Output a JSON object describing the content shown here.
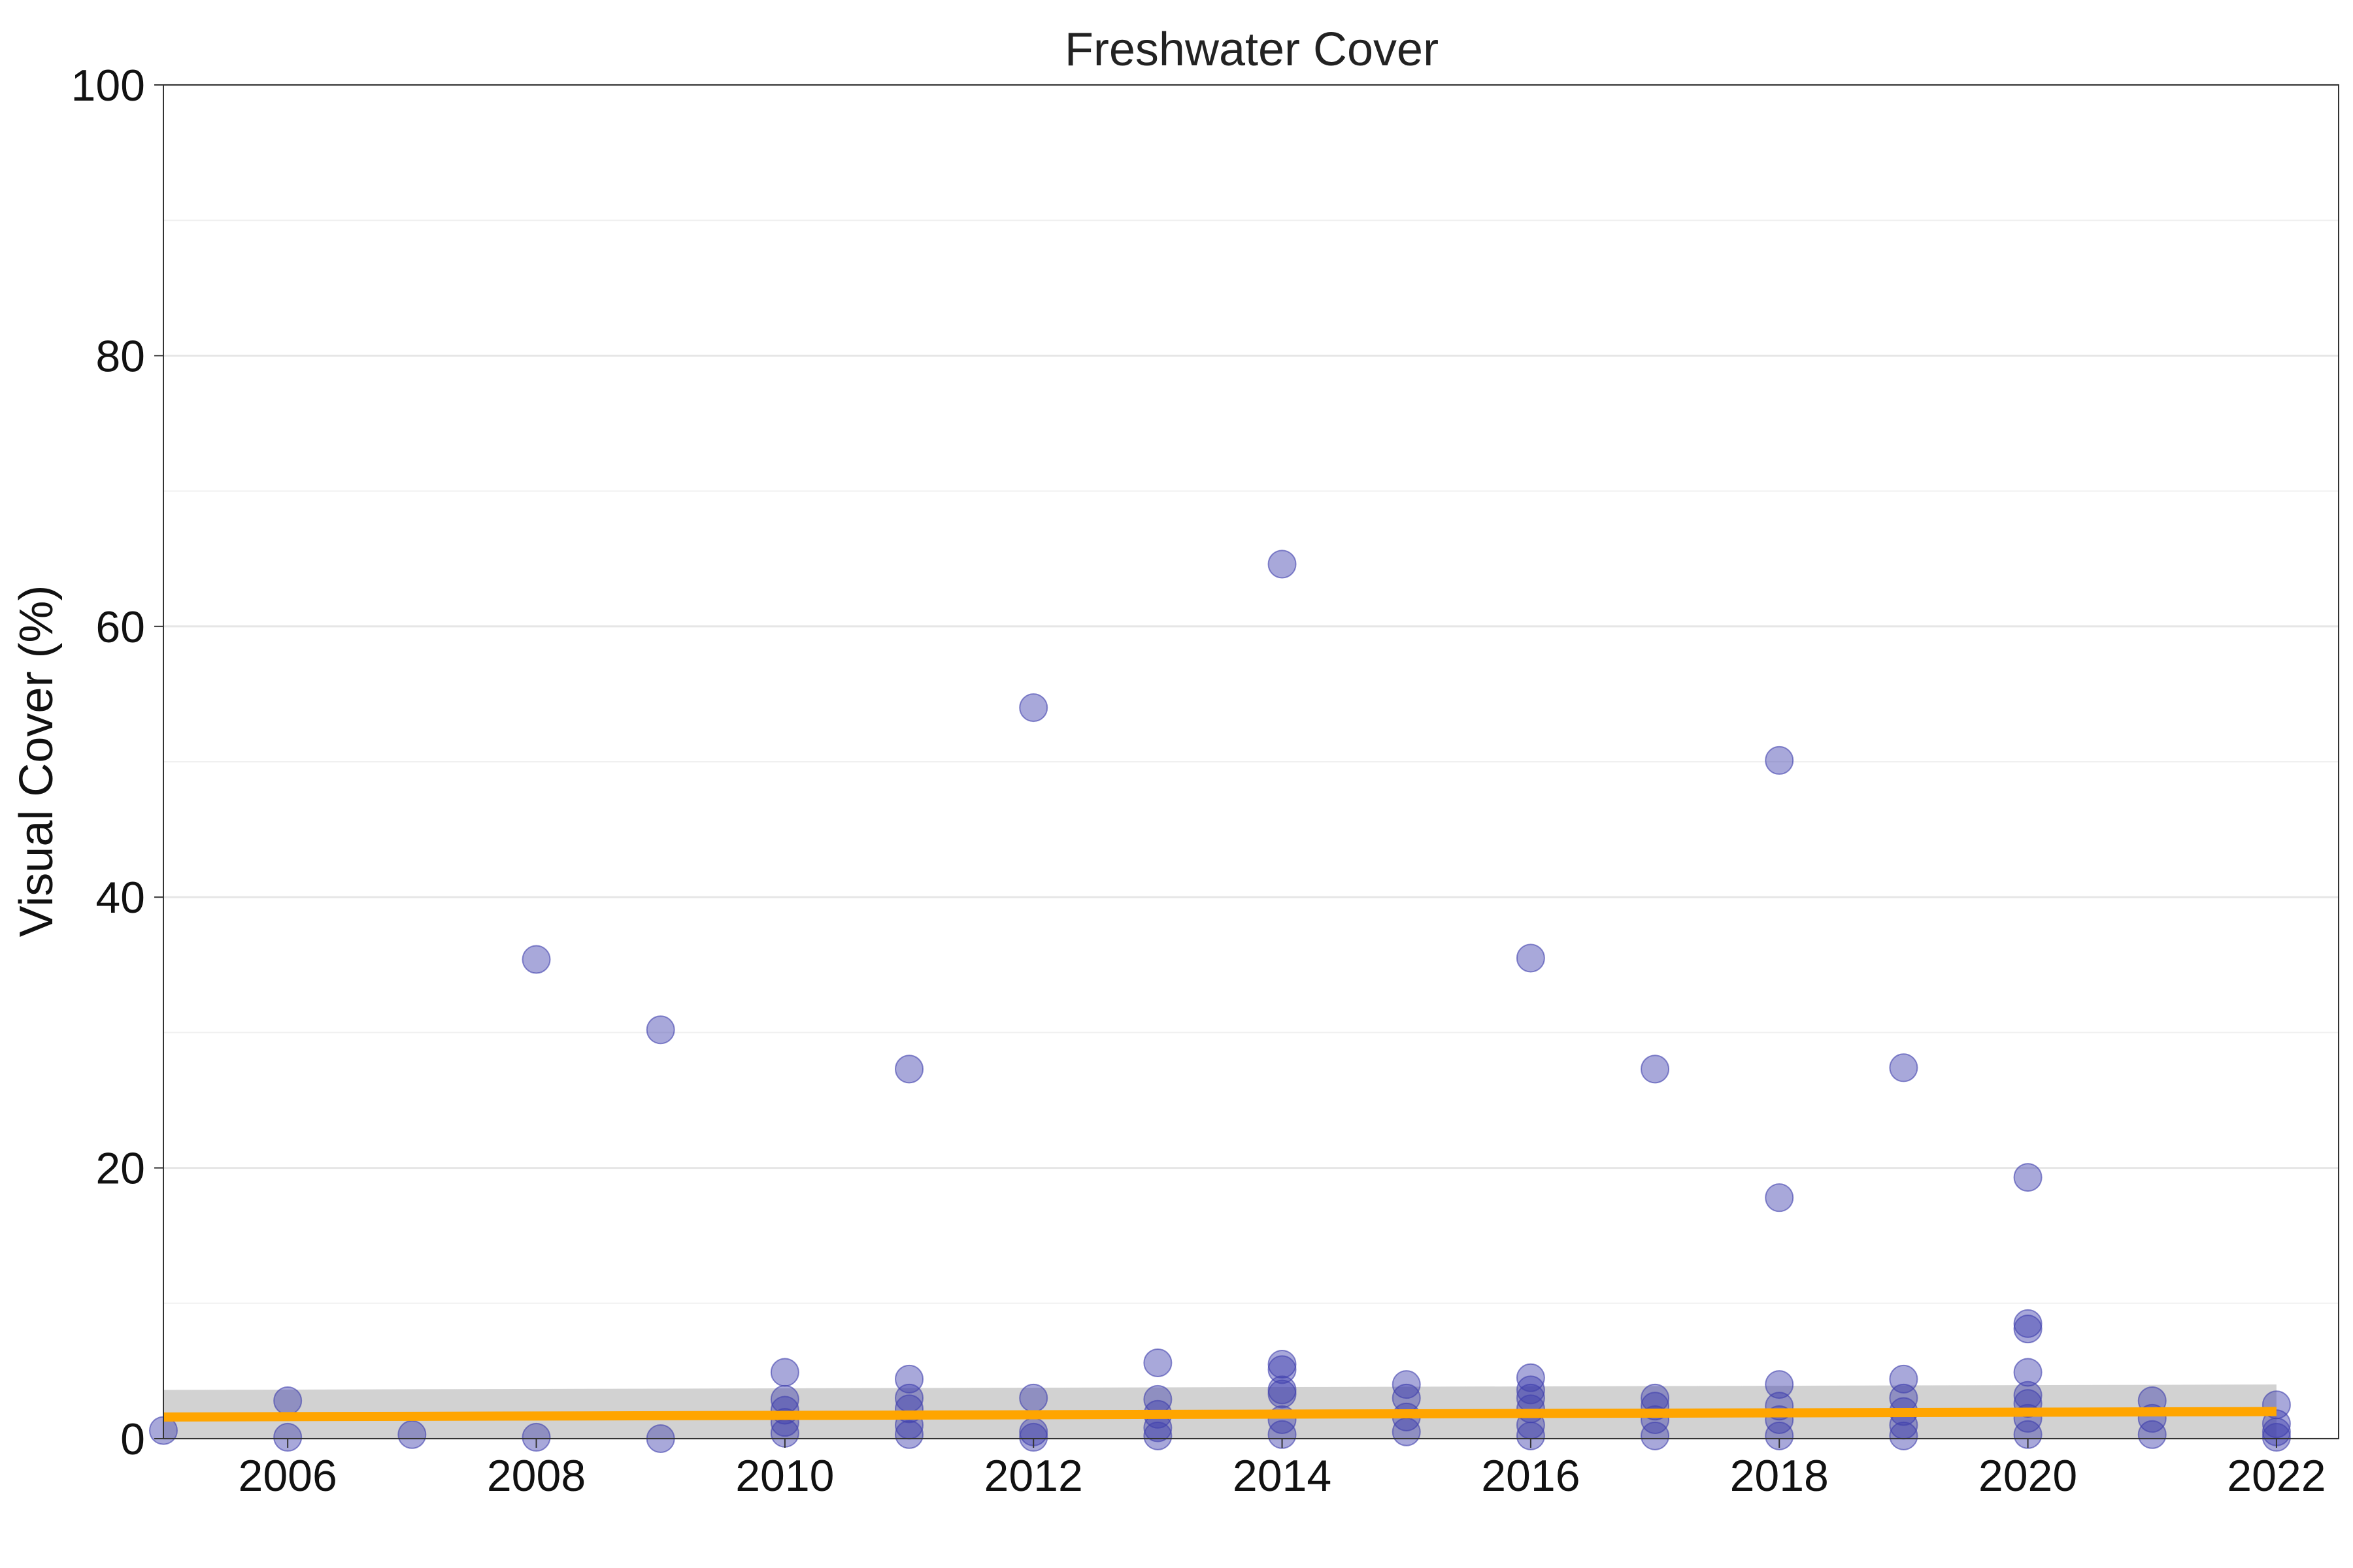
{
  "chart_data": {
    "type": "scatter",
    "title": "Freshwater Cover",
    "xlabel": "",
    "ylabel": "Visual Cover (%)",
    "xlim": [
      2005,
      2022.5
    ],
    "ylim": [
      0,
      100
    ],
    "x_ticks": [
      2006,
      2008,
      2010,
      2012,
      2014,
      2016,
      2018,
      2020,
      2022
    ],
    "y_ticks": [
      0,
      20,
      40,
      60,
      80,
      100
    ],
    "grid": "horizontal major and minor",
    "point_color": "#3f3fae",
    "point_opacity": 0.45,
    "trend_color": "#ffa500",
    "band_color": "#bfbfbf",
    "points": [
      {
        "x": 2005,
        "y": 0.6
      },
      {
        "x": 2006,
        "y": 2.8
      },
      {
        "x": 2006,
        "y": 0.1
      },
      {
        "x": 2007,
        "y": 0.3
      },
      {
        "x": 2008,
        "y": 35.4
      },
      {
        "x": 2008,
        "y": 0.1
      },
      {
        "x": 2009,
        "y": 30.2
      },
      {
        "x": 2009,
        "y": 0.0
      },
      {
        "x": 2010,
        "y": 4.9
      },
      {
        "x": 2010,
        "y": 2.9
      },
      {
        "x": 2010,
        "y": 2.1
      },
      {
        "x": 2010,
        "y": 1.2
      },
      {
        "x": 2010,
        "y": 0.4
      },
      {
        "x": 2011,
        "y": 27.3
      },
      {
        "x": 2011,
        "y": 4.4
      },
      {
        "x": 2011,
        "y": 3.0
      },
      {
        "x": 2011,
        "y": 2.2
      },
      {
        "x": 2011,
        "y": 1.0
      },
      {
        "x": 2011,
        "y": 0.3
      },
      {
        "x": 2012,
        "y": 54.0
      },
      {
        "x": 2012,
        "y": 3.0
      },
      {
        "x": 2012,
        "y": 0.5
      },
      {
        "x": 2012,
        "y": 0.1
      },
      {
        "x": 2013,
        "y": 5.6
      },
      {
        "x": 2013,
        "y": 2.9
      },
      {
        "x": 2013,
        "y": 1.8
      },
      {
        "x": 2013,
        "y": 0.8
      },
      {
        "x": 2013,
        "y": 0.2
      },
      {
        "x": 2014,
        "y": 64.6
      },
      {
        "x": 2014,
        "y": 5.5
      },
      {
        "x": 2014,
        "y": 5.1
      },
      {
        "x": 2014,
        "y": 3.6
      },
      {
        "x": 2014,
        "y": 3.3
      },
      {
        "x": 2014,
        "y": 1.4
      },
      {
        "x": 2014,
        "y": 0.3
      },
      {
        "x": 2015,
        "y": 4.0
      },
      {
        "x": 2015,
        "y": 3.0
      },
      {
        "x": 2015,
        "y": 1.6
      },
      {
        "x": 2015,
        "y": 0.5
      },
      {
        "x": 2016,
        "y": 35.5
      },
      {
        "x": 2016,
        "y": 4.5
      },
      {
        "x": 2016,
        "y": 3.6
      },
      {
        "x": 2016,
        "y": 3.0
      },
      {
        "x": 2016,
        "y": 2.2
      },
      {
        "x": 2016,
        "y": 1.0
      },
      {
        "x": 2016,
        "y": 0.2
      },
      {
        "x": 2017,
        "y": 27.3
      },
      {
        "x": 2017,
        "y": 3.0
      },
      {
        "x": 2017,
        "y": 2.4
      },
      {
        "x": 2017,
        "y": 1.4
      },
      {
        "x": 2017,
        "y": 0.2
      },
      {
        "x": 2018,
        "y": 50.1
      },
      {
        "x": 2018,
        "y": 17.8
      },
      {
        "x": 2018,
        "y": 4.0
      },
      {
        "x": 2018,
        "y": 2.4
      },
      {
        "x": 2018,
        "y": 1.4
      },
      {
        "x": 2018,
        "y": 0.2
      },
      {
        "x": 2019,
        "y": 27.4
      },
      {
        "x": 2019,
        "y": 4.4
      },
      {
        "x": 2019,
        "y": 3.0
      },
      {
        "x": 2019,
        "y": 2.0
      },
      {
        "x": 2019,
        "y": 1.0
      },
      {
        "x": 2019,
        "y": 0.2
      },
      {
        "x": 2020,
        "y": 19.3
      },
      {
        "x": 2020,
        "y": 8.5
      },
      {
        "x": 2020,
        "y": 8.1
      },
      {
        "x": 2020,
        "y": 4.9
      },
      {
        "x": 2020,
        "y": 3.2
      },
      {
        "x": 2020,
        "y": 2.6
      },
      {
        "x": 2020,
        "y": 1.5
      },
      {
        "x": 2020,
        "y": 0.3
      },
      {
        "x": 2021,
        "y": 2.8
      },
      {
        "x": 2021,
        "y": 1.5
      },
      {
        "x": 2021,
        "y": 0.3
      },
      {
        "x": 2022,
        "y": 2.5
      },
      {
        "x": 2022,
        "y": 1.1
      },
      {
        "x": 2022,
        "y": 0.5
      },
      {
        "x": 2022,
        "y": 0.1
      }
    ],
    "trend_line": {
      "x": [
        2005,
        2022
      ],
      "y": [
        1.6,
        2.0
      ]
    },
    "confidence_band": {
      "x": [
        2005,
        2022
      ],
      "lower": [
        0.0,
        0.0
      ],
      "upper": [
        3.6,
        4.0
      ]
    }
  }
}
